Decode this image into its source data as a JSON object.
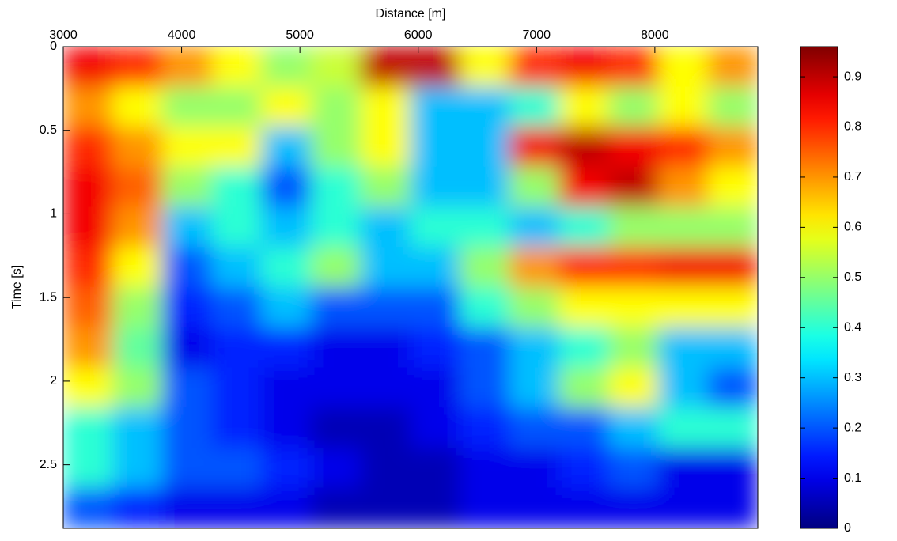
{
  "chart_data": {
    "type": "heatmap",
    "xlabel": "Distance [m]",
    "ylabel": "Time [s]",
    "xlim": [
      3000,
      8870
    ],
    "ylim": [
      0,
      2.88
    ],
    "y_reversed": true,
    "x_axis_position": "top",
    "xticks": [
      3000,
      4000,
      5000,
      6000,
      7000,
      8000
    ],
    "yticks": [
      0,
      0.5,
      1,
      1.5,
      2,
      2.5
    ],
    "colormap": "jet",
    "clim": [
      0,
      0.96
    ],
    "colorbar_ticks": [
      0,
      0.1,
      0.2,
      0.3,
      0.4,
      0.5,
      0.6,
      0.7,
      0.8,
      0.9
    ],
    "values": [
      [
        0.85,
        0.8,
        0.7,
        0.6,
        0.5,
        0.55,
        0.9,
        0.9,
        0.6,
        0.8,
        0.85,
        0.8,
        0.6,
        0.7
      ],
      [
        0.7,
        0.6,
        0.5,
        0.5,
        0.6,
        0.5,
        0.6,
        0.3,
        0.3,
        0.4,
        0.6,
        0.5,
        0.6,
        0.5
      ],
      [
        0.8,
        0.7,
        0.6,
        0.6,
        0.3,
        0.5,
        0.6,
        0.3,
        0.3,
        0.85,
        0.9,
        0.85,
        0.8,
        0.7
      ],
      [
        0.85,
        0.75,
        0.5,
        0.4,
        0.2,
        0.4,
        0.5,
        0.3,
        0.3,
        0.5,
        0.85,
        0.9,
        0.7,
        0.6
      ],
      [
        0.85,
        0.7,
        0.3,
        0.4,
        0.3,
        0.4,
        0.3,
        0.4,
        0.4,
        0.3,
        0.4,
        0.5,
        0.5,
        0.5
      ],
      [
        0.8,
        0.6,
        0.2,
        0.3,
        0.4,
        0.5,
        0.3,
        0.3,
        0.5,
        0.7,
        0.8,
        0.8,
        0.85,
        0.85
      ],
      [
        0.75,
        0.5,
        0.15,
        0.2,
        0.3,
        0.2,
        0.2,
        0.2,
        0.4,
        0.5,
        0.6,
        0.6,
        0.6,
        0.6
      ],
      [
        0.7,
        0.45,
        0.1,
        0.15,
        0.15,
        0.1,
        0.1,
        0.15,
        0.2,
        0.3,
        0.4,
        0.5,
        0.3,
        0.3
      ],
      [
        0.6,
        0.5,
        0.2,
        0.15,
        0.1,
        0.1,
        0.1,
        0.1,
        0.2,
        0.3,
        0.5,
        0.6,
        0.3,
        0.2
      ],
      [
        0.4,
        0.3,
        0.2,
        0.15,
        0.1,
        0.05,
        0.05,
        0.1,
        0.15,
        0.2,
        0.2,
        0.3,
        0.4,
        0.4
      ],
      [
        0.4,
        0.3,
        0.2,
        0.2,
        0.15,
        0.1,
        0.05,
        0.05,
        0.1,
        0.1,
        0.15,
        0.2,
        0.1,
        0.1
      ],
      [
        0.2,
        0.15,
        0.1,
        0.1,
        0.1,
        0.05,
        0.05,
        0.05,
        0.1,
        0.1,
        0.1,
        0.1,
        0.1,
        0.1
      ]
    ]
  }
}
